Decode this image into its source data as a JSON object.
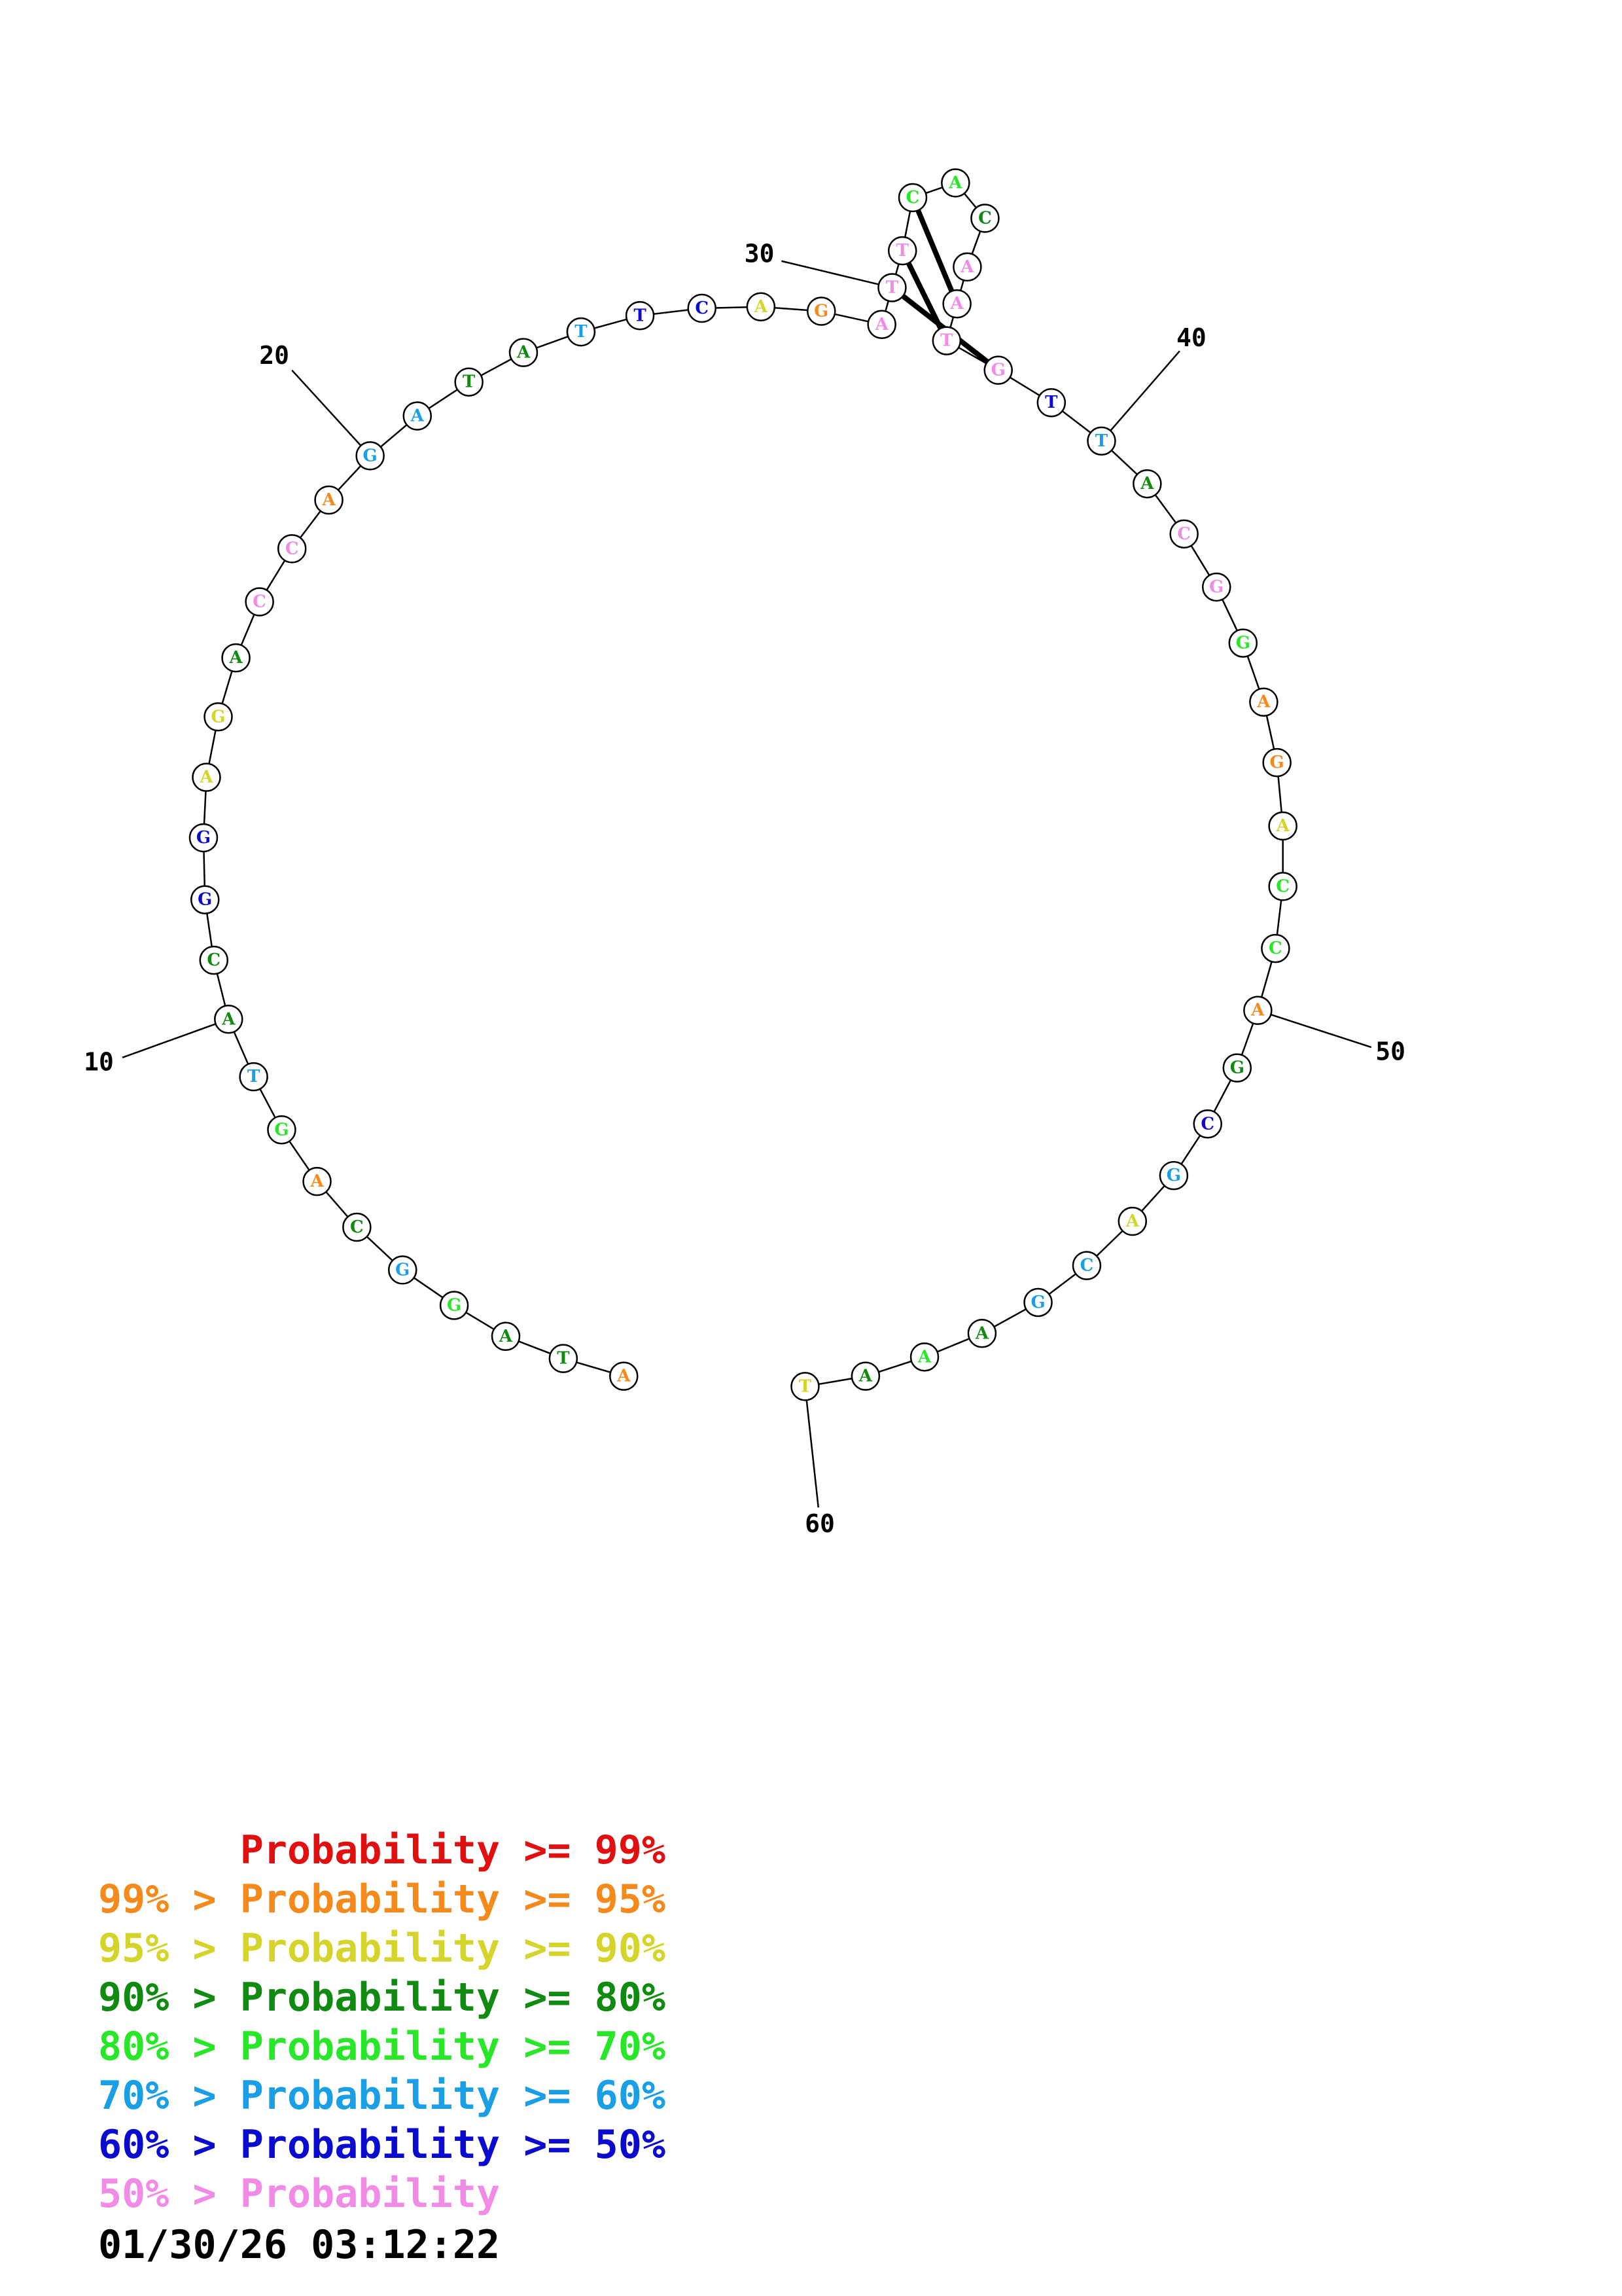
{
  "diagram": {
    "sequence": [
      "A",
      "T",
      "A",
      "G",
      "G",
      "C",
      "A",
      "G",
      "T",
      "A",
      "C",
      "G",
      "G",
      "A",
      "G",
      "A",
      "C",
      "C",
      "A",
      "G",
      "A",
      "T",
      "A",
      "T",
      "T",
      "C",
      "A",
      "G",
      "A",
      "T",
      "T",
      "C",
      "A",
      "C",
      "A",
      "A",
      "T",
      "G",
      "T",
      "T",
      "A",
      "C",
      "G",
      "G",
      "A",
      "G",
      "A",
      "C",
      "C",
      "A",
      "G",
      "C",
      "G",
      "A",
      "C",
      "G",
      "A",
      "A",
      "A",
      "T"
    ],
    "colors": [
      "#f58a1c",
      "#108a10",
      "#108a10",
      "#28e628",
      "#1a9fe6",
      "#108a10",
      "#f58a1c",
      "#28e628",
      "#1a9fe6",
      "#108a10",
      "#108a10",
      "#0b0bd0",
      "#0b0bd0",
      "#d4d42a",
      "#d4d42a",
      "#108a10",
      "#f08ce6",
      "#f08ce6",
      "#f58a1c",
      "#1a9fe6",
      "#1a9fe6",
      "#108a10",
      "#108a10",
      "#1a9fe6",
      "#0b0bd0",
      "#0b0bd0",
      "#d4d42a",
      "#f58a1c",
      "#f08ce6",
      "#f08ce6",
      "#f08ce6",
      "#28e628",
      "#28e628",
      "#108a10",
      "#f08ce6",
      "#f08ce6",
      "#f08ce6",
      "#f08ce6",
      "#0b0bd0",
      "#1a9fe6",
      "#108a10",
      "#f08ce6",
      "#f08ce6",
      "#28e628",
      "#f58a1c",
      "#f58a1c",
      "#d4d42a",
      "#28e628",
      "#28e628",
      "#f58a1c",
      "#108a10",
      "#0b0bd0",
      "#1a9fe6",
      "#d4d42a",
      "#1a9fe6",
      "#1a9fe6",
      "#108a10",
      "#28e628",
      "#108a10",
      "#d4d42a"
    ],
    "pairs": [
      [
        29,
        37
      ],
      [
        30,
        36
      ],
      [
        31,
        35
      ]
    ],
    "position_labels": [
      "10",
      "20",
      "30",
      "40",
      "50",
      "60"
    ]
  },
  "legend": [
    {
      "prefix": "",
      "text": "Probability >= 99%",
      "color": "#e01010"
    },
    {
      "prefix": "99% > ",
      "text": "Probability >= 95%",
      "color": "#f58a1c"
    },
    {
      "prefix": "95% > ",
      "text": "Probability >= 90%",
      "color": "#d4d42a"
    },
    {
      "prefix": "90% > ",
      "text": "Probability >= 80%",
      "color": "#108a10"
    },
    {
      "prefix": "80% > ",
      "text": "Probability >= 70%",
      "color": "#28e628"
    },
    {
      "prefix": "70% > ",
      "text": "Probability >= 60%",
      "color": "#1a9fe6"
    },
    {
      "prefix": "60% > ",
      "text": "Probability >= 50%",
      "color": "#0b0bd0"
    },
    {
      "prefix": "50% > ",
      "text": "Probability",
      "color": "#f08ce6"
    }
  ],
  "timestamp": "01/30/26 03:12:22"
}
